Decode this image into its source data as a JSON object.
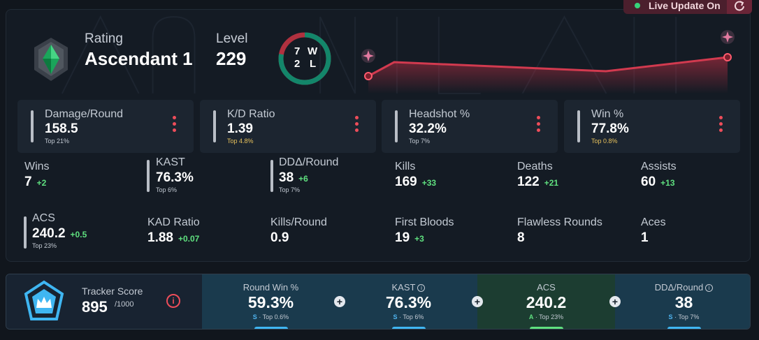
{
  "live_update": {
    "label": "Live Update On",
    "indicator_color": "#37d27a"
  },
  "header": {
    "rating_label": "Rating",
    "rating_value": "Ascendant 1",
    "level_label": "Level",
    "level_value": "229",
    "record": {
      "wins": "7",
      "wins_letter": "W",
      "losses": "2",
      "losses_letter": "L",
      "win_fraction": 0.778
    }
  },
  "stat_cards": [
    {
      "title": "Damage/Round",
      "value": "158.5",
      "percentile": "Top 21%",
      "percentile_color": "#c3cad3"
    },
    {
      "title": "K/D Ratio",
      "value": "1.39",
      "percentile": "Top 4.8%",
      "percentile_color": "#e8c25c"
    },
    {
      "title": "Headshot %",
      "value": "32.2%",
      "percentile": "Top 7%",
      "percentile_color": "#c3cad3"
    },
    {
      "title": "Win %",
      "value": "77.8%",
      "percentile": "Top 0.8%",
      "percentile_color": "#e8c25c"
    }
  ],
  "stats": {
    "wins": {
      "title": "Wins",
      "value": "7",
      "delta": "+2"
    },
    "kast": {
      "title": "KAST",
      "value": "76.3%",
      "percentile": "Top 6%"
    },
    "ddr": {
      "title": "DDΔ/Round",
      "value": "38",
      "delta": "+6",
      "percentile": "Top 7%"
    },
    "kills": {
      "title": "Kills",
      "value": "169",
      "delta": "+33"
    },
    "deaths": {
      "title": "Deaths",
      "value": "122",
      "delta": "+21"
    },
    "assists": {
      "title": "Assists",
      "value": "60",
      "delta": "+13"
    },
    "acs": {
      "title": "ACS",
      "value": "240.2",
      "delta": "+0.5",
      "percentile": "Top 23%"
    },
    "kad": {
      "title": "KAD Ratio",
      "value": "1.88",
      "delta": "+0.07"
    },
    "kpr": {
      "title": "Kills/Round",
      "value": "0.9"
    },
    "first_bloods": {
      "title": "First Bloods",
      "value": "19",
      "delta": "+3"
    },
    "flawless": {
      "title": "Flawless Rounds",
      "value": "8"
    },
    "aces": {
      "title": "Aces",
      "value": "1"
    }
  },
  "tracker": {
    "label": "Tracker Score",
    "score": "895",
    "max": "/1000",
    "segments": [
      {
        "title": "Round Win %",
        "value": "59.3%",
        "grade": "S",
        "percentile": "Top 0.6%",
        "grade_color": "#4fb4f0",
        "info": false
      },
      {
        "title": "KAST",
        "value": "76.3%",
        "grade": "S",
        "percentile": "Top 6%",
        "grade_color": "#4fb4f0",
        "info": true
      },
      {
        "title": "ACS",
        "value": "240.2",
        "grade": "A",
        "percentile": "Top 23%",
        "grade_color": "#5fe07f",
        "info": false
      },
      {
        "title": "DDΔ/Round",
        "value": "38",
        "grade": "S",
        "percentile": "Top 7%",
        "grade_color": "#4fb4f0",
        "info": true
      }
    ]
  }
}
